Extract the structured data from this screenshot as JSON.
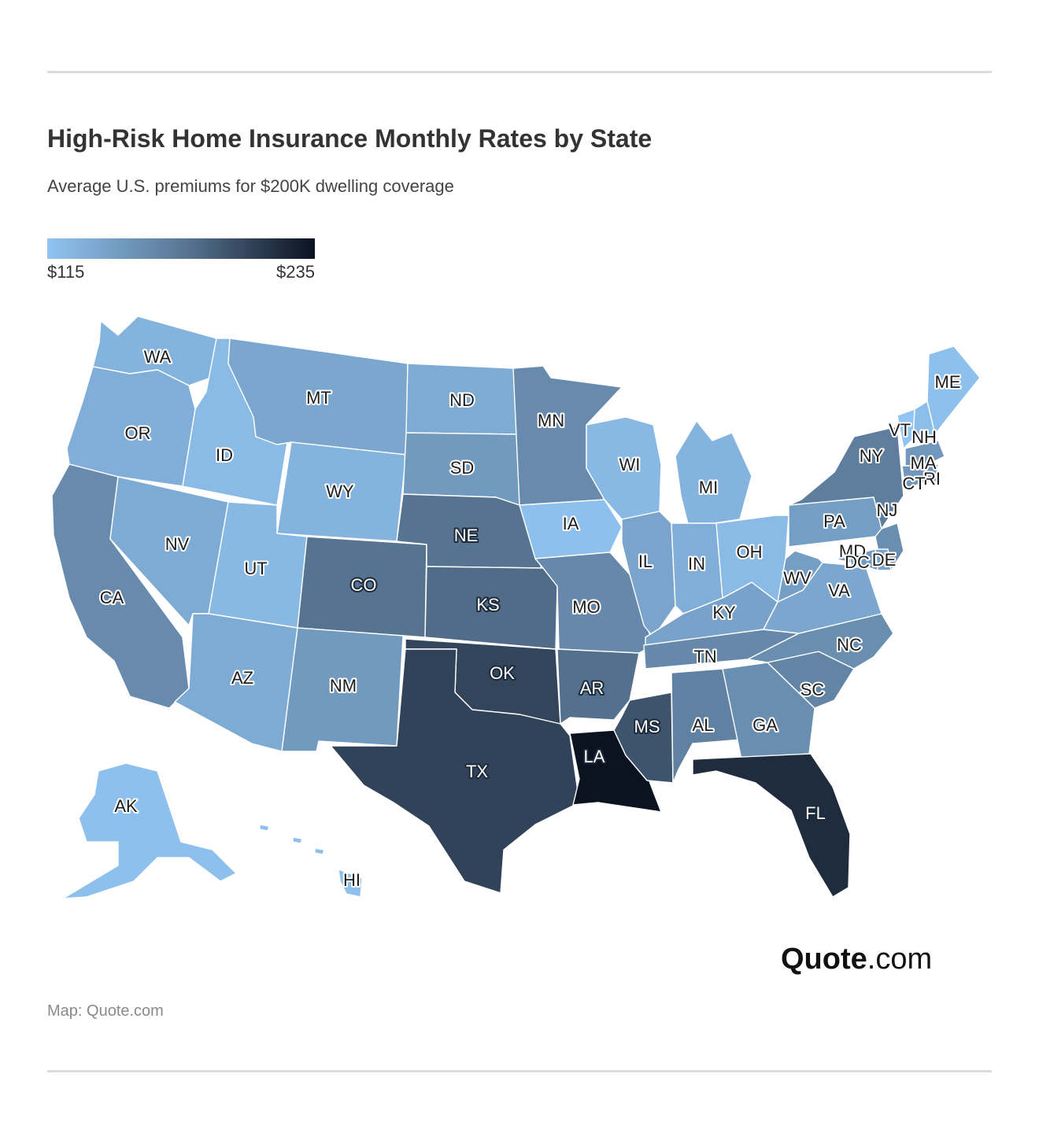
{
  "header": {
    "title": "High-Risk Home Insurance Monthly Rates by State",
    "subtitle": "Average U.S. premiums for $200K dwelling coverage"
  },
  "legend": {
    "min_label": "$115",
    "max_label": "$235",
    "min_value": 115,
    "max_value": 235,
    "color_low": "#90c4f2",
    "color_mid": "#5a7896",
    "color_high": "#0b1220"
  },
  "map": {
    "states": [
      {
        "abbr": "WA",
        "value": 128
      },
      {
        "abbr": "OR",
        "value": 132
      },
      {
        "abbr": "CA",
        "value": 160
      },
      {
        "abbr": "ID",
        "value": 122
      },
      {
        "abbr": "NV",
        "value": 135
      },
      {
        "abbr": "MT",
        "value": 138
      },
      {
        "abbr": "WY",
        "value": 128
      },
      {
        "abbr": "UT",
        "value": 124
      },
      {
        "abbr": "AZ",
        "value": 135
      },
      {
        "abbr": "CO",
        "value": 178
      },
      {
        "abbr": "NM",
        "value": 148
      },
      {
        "abbr": "ND",
        "value": 135
      },
      {
        "abbr": "SD",
        "value": 148
      },
      {
        "abbr": "NE",
        "value": 178
      },
      {
        "abbr": "KS",
        "value": 182
      },
      {
        "abbr": "OK",
        "value": 205
      },
      {
        "abbr": "TX",
        "value": 206
      },
      {
        "abbr": "MN",
        "value": 160
      },
      {
        "abbr": "IA",
        "value": 118
      },
      {
        "abbr": "MO",
        "value": 162
      },
      {
        "abbr": "AR",
        "value": 180
      },
      {
        "abbr": "LA",
        "value": 235
      },
      {
        "abbr": "WI",
        "value": 124
      },
      {
        "abbr": "IL",
        "value": 140
      },
      {
        "abbr": "MS",
        "value": 196
      },
      {
        "abbr": "MI",
        "value": 128
      },
      {
        "abbr": "IN",
        "value": 132
      },
      {
        "abbr": "KY",
        "value": 142
      },
      {
        "abbr": "TN",
        "value": 162
      },
      {
        "abbr": "AL",
        "value": 168
      },
      {
        "abbr": "OH",
        "value": 122
      },
      {
        "abbr": "GA",
        "value": 158
      },
      {
        "abbr": "FL",
        "value": 220
      },
      {
        "abbr": "SC",
        "value": 165
      },
      {
        "abbr": "NC",
        "value": 158
      },
      {
        "abbr": "VA",
        "value": 138
      },
      {
        "abbr": "WV",
        "value": 145
      },
      {
        "abbr": "PA",
        "value": 145
      },
      {
        "abbr": "NY",
        "value": 170
      },
      {
        "abbr": "VT",
        "value": 115
      },
      {
        "abbr": "NH",
        "value": 120
      },
      {
        "abbr": "ME",
        "value": 118
      },
      {
        "abbr": "MA",
        "value": 150
      },
      {
        "abbr": "RI",
        "value": 150
      },
      {
        "abbr": "CT",
        "value": 150
      },
      {
        "abbr": "NJ",
        "value": 158
      },
      {
        "abbr": "DE",
        "value": 140
      },
      {
        "abbr": "MD",
        "value": 148
      },
      {
        "abbr": "DC",
        "value": 150
      },
      {
        "abbr": "AK",
        "value": 118
      },
      {
        "abbr": "HI",
        "value": 118
      }
    ]
  },
  "brand": {
    "name": "Quote",
    "suffix": ".com"
  },
  "source": "Map: Quote.com"
}
